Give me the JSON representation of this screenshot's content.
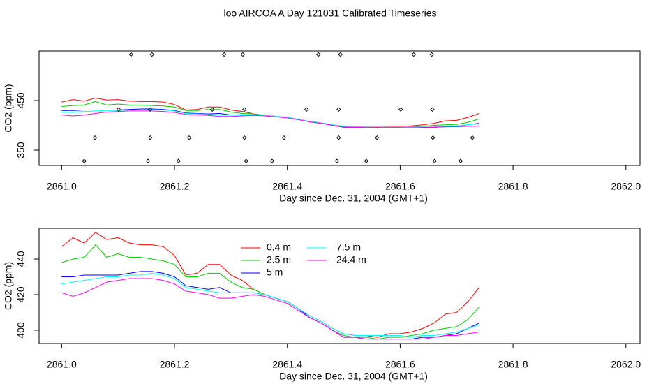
{
  "title": "loo AIRCOA A  Day 121031  Calibrated Timeseries",
  "chart_data": [
    {
      "type": "line",
      "x_label": "Day since Dec. 31, 2004 (GMT+1)",
      "y_label": "CO2 (ppm)",
      "xlim": [
        2860.96,
        2862.025
      ],
      "ylim": [
        319,
        550
      ],
      "xticks": [
        {
          "value": 2861,
          "label": "2861.0"
        },
        2861.2,
        2861.4,
        2861.6,
        2861.8,
        {
          "value": 2862,
          "label": "2862.0"
        }
      ],
      "yticks": [
        350,
        450
      ],
      "x": [
        2861.0,
        2861.02,
        2861.04,
        2861.06,
        2861.08,
        2861.1,
        2861.12,
        2861.14,
        2861.16,
        2861.18,
        2861.2,
        2861.22,
        2861.24,
        2861.26,
        2861.28,
        2861.3,
        2861.32,
        2861.34,
        2861.36,
        2861.38,
        2861.4,
        2861.42,
        2861.44,
        2861.46,
        2861.48,
        2861.5,
        2861.52,
        2861.54,
        2861.56,
        2861.58,
        2861.6,
        2861.62,
        2861.64,
        2861.66,
        2861.68,
        2861.7,
        2861.72,
        2861.74
      ],
      "series": [
        {
          "color": "#ff0000",
          "values": [
            447,
            452,
            449,
            455,
            451,
            452,
            449,
            448,
            448,
            447,
            442,
            431,
            432,
            437,
            437,
            431,
            428,
            423,
            420,
            418,
            416,
            412,
            408,
            405,
            401,
            398,
            397,
            397,
            396,
            398,
            398,
            399,
            401,
            404,
            409,
            410,
            416,
            424
          ]
        },
        {
          "color": "#00cd00",
          "values": [
            438,
            440,
            441,
            448,
            441,
            443,
            441,
            441,
            440,
            439,
            437,
            430,
            430,
            432,
            432,
            427,
            424,
            423,
            420,
            418,
            416,
            412,
            407,
            404,
            400,
            397,
            396,
            396,
            395,
            396,
            396,
            397,
            398,
            400,
            401,
            402,
            406,
            413
          ]
        },
        {
          "color": "#0000ff",
          "values": [
            430,
            430,
            431,
            431,
            431,
            431,
            432,
            433,
            433,
            432,
            430,
            425,
            424,
            423,
            424,
            421,
            421,
            421,
            420,
            418,
            416,
            412,
            407,
            404,
            400,
            396,
            396,
            395,
            395,
            395,
            395,
            395,
            396,
            396,
            397,
            398,
            401,
            404
          ]
        },
        {
          "color": "#00ffff",
          "values": [
            426,
            427,
            428,
            429,
            430,
            430,
            431,
            431,
            432,
            431,
            429,
            424,
            423,
            422,
            421,
            421,
            421,
            421,
            420,
            418,
            416,
            412,
            408,
            405,
            401,
            398,
            397,
            397,
            397,
            397,
            397,
            396,
            397,
            397,
            398,
            399,
            401,
            403
          ]
        },
        {
          "color": "#ff00ff",
          "values": [
            421,
            419,
            421,
            424,
            427,
            428,
            429,
            429,
            429,
            428,
            426,
            422,
            421,
            420,
            418,
            418,
            419,
            420,
            419,
            417,
            415,
            411,
            407,
            404,
            400,
            396,
            396,
            395,
            395,
            395,
            395,
            395,
            395,
            396,
            397,
            397,
            398,
            399
          ]
        }
      ],
      "points": {
        "color": "#000000",
        "x": [
          2861.123,
          2861.16,
          2861.288,
          2861.321,
          2861.455,
          2861.494,
          2861.624,
          2861.656,
          2861.101,
          2861.157,
          2861.267,
          2861.324,
          2861.434,
          2861.491,
          2861.601,
          2861.657,
          2861.059,
          2861.157,
          2861.226,
          2861.324,
          2861.394,
          2861.491,
          2861.559,
          2861.658,
          2861.728,
          2861.04,
          2861.153,
          2861.207,
          2861.327,
          2861.373,
          2861.488,
          2861.54,
          2861.661,
          2861.707
        ],
        "values": [
          543,
          543,
          543,
          543,
          543,
          543,
          543,
          543,
          432,
          432,
          432,
          432,
          432,
          432,
          432,
          432,
          375,
          375,
          375,
          375,
          375,
          375,
          375,
          375,
          375,
          328,
          328,
          328,
          328,
          328,
          328,
          328,
          328,
          328
        ]
      }
    },
    {
      "type": "line",
      "x_label": "Day since Dec. 31, 2004 (GMT+1)",
      "y_label": "CO2 (ppm)",
      "xlim": [
        2860.96,
        2862.025
      ],
      "ylim": [
        392.5,
        457.3
      ],
      "xticks": [
        {
          "value": 2861,
          "label": "2861.0"
        },
        2861.2,
        2861.4,
        2861.6,
        2861.8,
        {
          "value": 2862,
          "label": "2862.0"
        }
      ],
      "yticks": [
        400,
        420,
        440
      ],
      "legend": "top",
      "x": [
        2861.0,
        2861.02,
        2861.04,
        2861.06,
        2861.08,
        2861.1,
        2861.12,
        2861.14,
        2861.16,
        2861.18,
        2861.2,
        2861.22,
        2861.24,
        2861.26,
        2861.28,
        2861.3,
        2861.32,
        2861.34,
        2861.36,
        2861.38,
        2861.4,
        2861.42,
        2861.44,
        2861.46,
        2861.48,
        2861.5,
        2861.52,
        2861.54,
        2861.56,
        2861.58,
        2861.6,
        2861.62,
        2861.64,
        2861.66,
        2861.68,
        2861.7,
        2861.72,
        2861.74
      ],
      "series": [
        {
          "name": "0.4 m",
          "color": "#ff0000",
          "values": [
            447,
            452,
            449,
            455,
            451,
            452,
            449,
            448,
            448,
            447,
            442,
            431,
            432,
            437,
            437,
            431,
            428,
            423,
            420,
            418,
            416,
            412,
            408,
            405,
            401,
            398,
            397,
            397,
            396,
            398,
            398,
            399,
            401,
            404,
            409,
            410,
            416,
            424
          ]
        },
        {
          "name": "2.5 m",
          "color": "#00cd00",
          "values": [
            438,
            440,
            441,
            448,
            441,
            443,
            441,
            441,
            440,
            439,
            437,
            430,
            430,
            432,
            432,
            427,
            424,
            423,
            420,
            418,
            416,
            412,
            407,
            404,
            400,
            397,
            396,
            396,
            395,
            396,
            396,
            397,
            398,
            400,
            401,
            402,
            406,
            413
          ]
        },
        {
          "name": "5 m",
          "color": "#0000ff",
          "values": [
            430,
            430,
            431,
            431,
            431,
            431,
            432,
            433,
            433,
            432,
            430,
            425,
            424,
            423,
            424,
            421,
            421,
            421,
            420,
            418,
            416,
            412,
            407,
            404,
            400,
            396,
            396,
            395,
            395,
            395,
            395,
            395,
            396,
            396,
            397,
            398,
            401,
            404
          ]
        },
        {
          "name": "7.5 m",
          "color": "#00ffff",
          "values": [
            426,
            427,
            428,
            429,
            430,
            430,
            431,
            431,
            432,
            431,
            429,
            424,
            423,
            422,
            421,
            421,
            421,
            421,
            420,
            418,
            416,
            412,
            408,
            405,
            401,
            398,
            397,
            397,
            397,
            397,
            397,
            396,
            397,
            397,
            398,
            399,
            401,
            403
          ]
        },
        {
          "name": "24.4 m",
          "color": "#ff00ff",
          "values": [
            421,
            419,
            421,
            424,
            427,
            428,
            429,
            429,
            429,
            428,
            426,
            422,
            421,
            420,
            418,
            418,
            419,
            420,
            419,
            417,
            415,
            411,
            407,
            404,
            400,
            396,
            396,
            395,
            395,
            395,
            395,
            395,
            395,
            396,
            397,
            397,
            398,
            399
          ]
        }
      ]
    }
  ]
}
